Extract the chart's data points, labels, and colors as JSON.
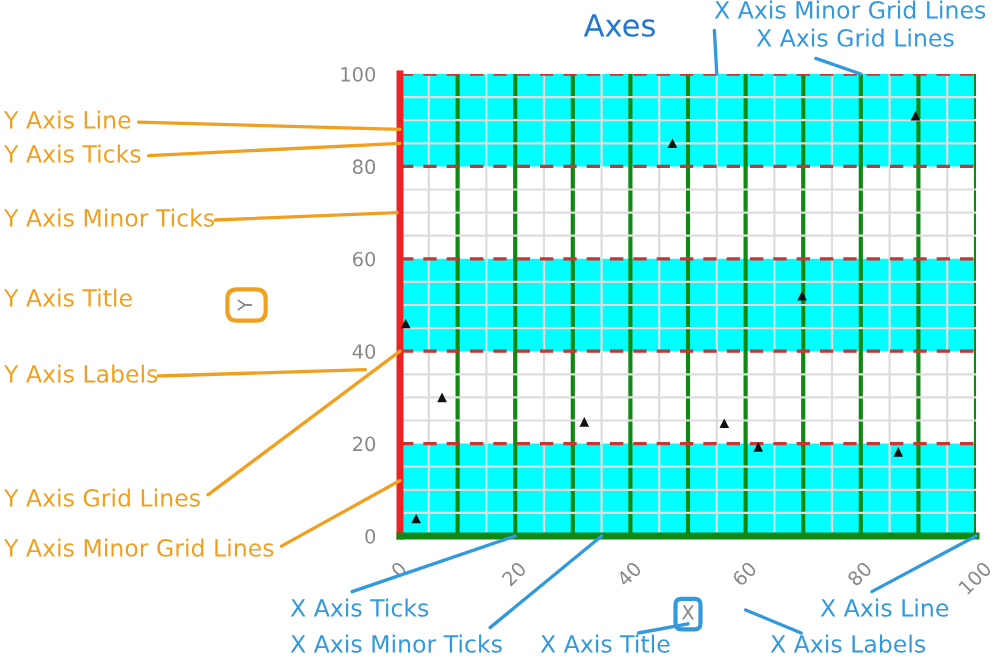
{
  "chart_data": {
    "type": "scatter",
    "title": "Axes",
    "xlabel": "X",
    "ylabel": "Y",
    "x": [
      1,
      2.8,
      7.3,
      32,
      47.3,
      56.3,
      62.2,
      69.8,
      86.5,
      89.5
    ],
    "values": [
      46,
      3.8,
      30,
      24.7,
      85,
      24.4,
      19.3,
      52,
      18.2,
      91
    ],
    "color": "#111111",
    "marker": "triangle",
    "xlim": [
      0,
      100
    ],
    "ylim": [
      0,
      100
    ],
    "xticks": [
      0,
      {
        "value": 10,
        "label": null
      },
      20,
      {
        "value": 30,
        "label": null
      },
      40,
      {
        "value": 50,
        "label": null
      },
      60,
      {
        "value": 70,
        "label": null
      },
      80,
      {
        "value": 90,
        "label": null
      },
      100
    ],
    "yticks": [
      0,
      20,
      40,
      60,
      80,
      100
    ],
    "grid": true,
    "bands": [
      {
        "axis": "y",
        "from": 0,
        "to": 20,
        "color": "#00ffff"
      },
      {
        "axis": "y",
        "from": 40,
        "to": 60,
        "color": "#00ffff"
      },
      {
        "axis": "y",
        "from": 80,
        "to": 100,
        "color": "#00ffff"
      }
    ],
    "annotations": [
      {
        "text": "X Axis Minor Grid Lines",
        "x": 55,
        "y": 100
      },
      {
        "text": "X Axis Grid Lines",
        "x": 80,
        "y": 100
      },
      {
        "text": "Y Axis Line",
        "x": 0,
        "y": 88
      },
      {
        "text": "Y Axis Ticks",
        "x": 0,
        "y": 85
      },
      "Y Axis Minor Ticks",
      "Y Axis Title",
      "Y Axis Labels",
      {
        "text": "Y Axis Grid Lines",
        "x": 0,
        "y": 40
      },
      {
        "text": "Y Axis Minor Grid Lines",
        "x": 0,
        "y": 12
      },
      {
        "text": "X Axis Ticks",
        "x": 20,
        "y": 0
      },
      {
        "text": "X Axis Minor Ticks",
        "x": 35,
        "y": 0
      },
      "X Axis Title",
      {
        "text": "X Axis Line",
        "x": 100,
        "y": 0
      },
      "X Axis Labels"
    ]
  }
}
